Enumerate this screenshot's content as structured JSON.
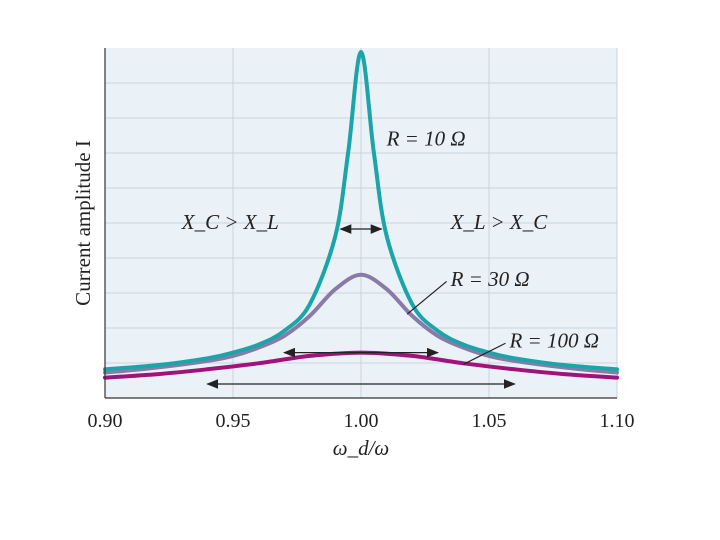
{
  "chart_data": {
    "type": "line",
    "title": "",
    "xlabel": "ω_d/ω",
    "ylabel": "Current amplitude I",
    "xlim": [
      0.9,
      1.1
    ],
    "ylim": [
      0,
      1.0
    ],
    "xticks": [
      "0.90",
      "0.95",
      "1.00",
      "1.05",
      "1.10"
    ],
    "grid": true,
    "series": [
      {
        "name": "R = 10 Ω",
        "color": "#1ba5a8",
        "x": [
          0.9,
          0.92,
          0.94,
          0.95,
          0.96,
          0.97,
          0.98,
          0.99,
          0.995,
          1.0,
          1.005,
          1.01,
          1.02,
          1.03,
          1.04,
          1.05,
          1.06,
          1.08,
          1.1
        ],
        "y": [
          0.05,
          0.062,
          0.083,
          0.1,
          0.124,
          0.165,
          0.245,
          0.45,
          0.7,
          1.0,
          0.7,
          0.45,
          0.245,
          0.165,
          0.124,
          0.1,
          0.083,
          0.062,
          0.05
        ]
      },
      {
        "name": "R = 30 Ω",
        "color": "#8a7aa8",
        "x": [
          0.9,
          0.92,
          0.94,
          0.95,
          0.96,
          0.97,
          0.98,
          0.99,
          1.0,
          1.01,
          1.02,
          1.03,
          1.04,
          1.05,
          1.06,
          1.08,
          1.1
        ],
        "y": [
          0.04,
          0.055,
          0.075,
          0.09,
          0.115,
          0.15,
          0.21,
          0.29,
          0.333,
          0.29,
          0.21,
          0.15,
          0.115,
          0.09,
          0.075,
          0.055,
          0.04
        ]
      },
      {
        "name": "R = 100 Ω",
        "color": "#a0137a",
        "x": [
          0.9,
          0.92,
          0.94,
          0.96,
          0.98,
          1.0,
          1.02,
          1.04,
          1.06,
          1.08,
          1.1
        ],
        "y": [
          0.025,
          0.035,
          0.05,
          0.068,
          0.09,
          0.1,
          0.09,
          0.068,
          0.05,
          0.035,
          0.025
        ]
      }
    ],
    "annotations": [
      {
        "text": "R = 10 Ω",
        "x": 1.01,
        "y": 0.72
      },
      {
        "text": "R = 30 Ω",
        "x": 1.035,
        "y": 0.3
      },
      {
        "text": "R = 100 Ω",
        "x": 1.058,
        "y": 0.115
      },
      {
        "text": "X_C > X_L",
        "x": 0.93,
        "y": 0.47
      },
      {
        "text": "X_L > X_C",
        "x": 1.035,
        "y": 0.47
      }
    ],
    "width_markers": [
      {
        "series": "R = 10 Ω",
        "x0": 0.992,
        "x1": 1.008,
        "y": 0.47
      },
      {
        "series": "R = 30 Ω",
        "x0": 0.97,
        "x1": 1.03,
        "y": 0.1
      },
      {
        "series": "R = 100 Ω",
        "x0": 0.94,
        "x1": 1.06,
        "y": 0.0
      }
    ]
  }
}
